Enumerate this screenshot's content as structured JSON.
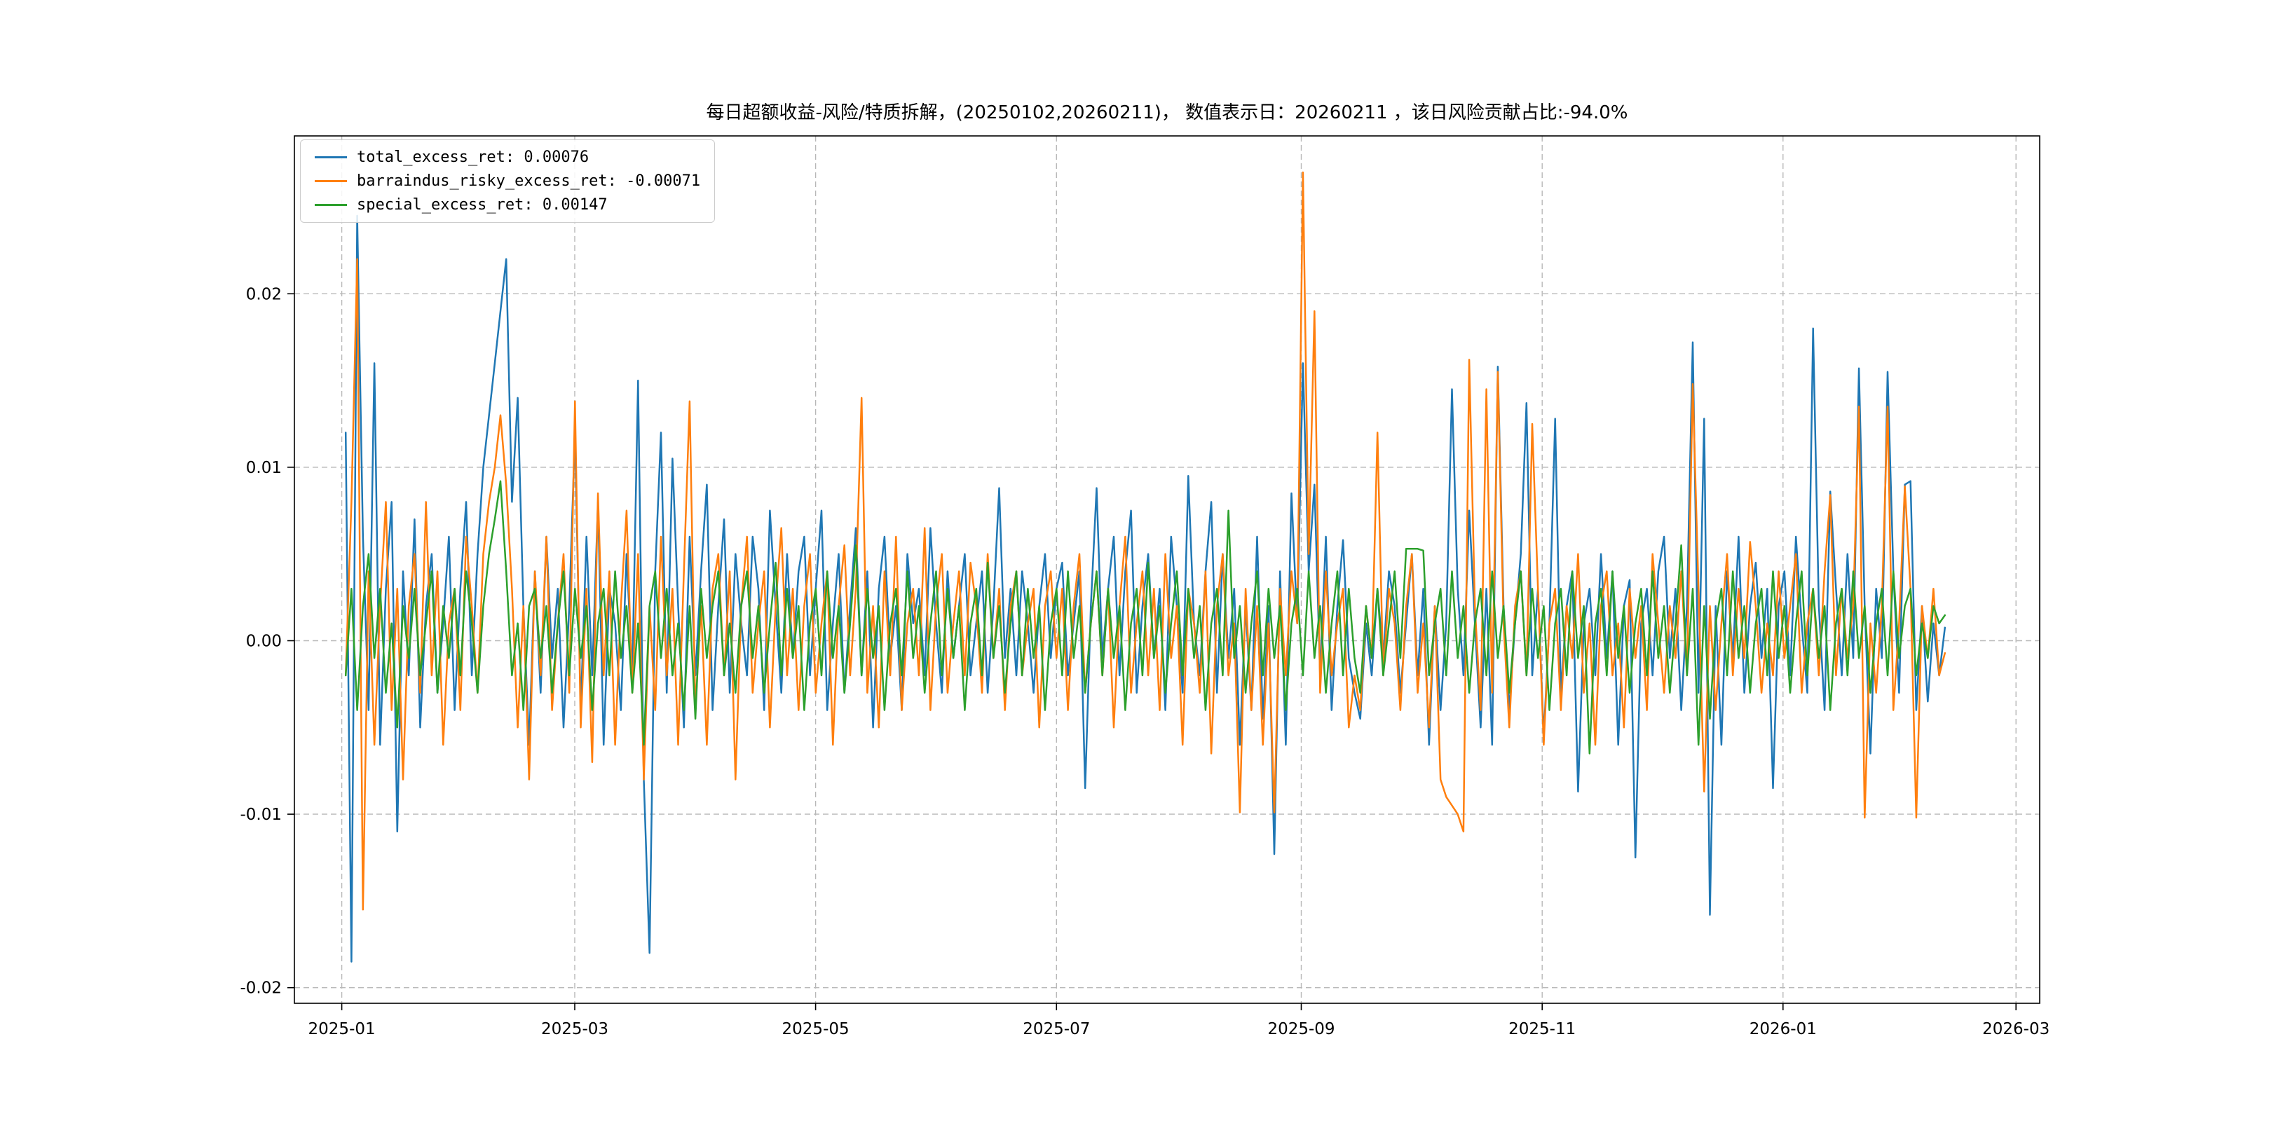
{
  "chart_data": {
    "type": "line",
    "title": "每日超额收益-风险/特质拆解，(20250102,20260211)， 数值表示日：20260211 ，该日风险贡献占比:-94.0%",
    "grid": "dashed",
    "legend_position": "upper-left",
    "start_date": "2025-01-02",
    "end_date": "2026-02-11",
    "x_axis": {
      "tick_labels": [
        "2025-01",
        "2025-03",
        "2025-05",
        "2025-07",
        "2025-09",
        "2025-11",
        "2026-01",
        "2026-03"
      ],
      "tick_days": [
        0,
        59,
        120,
        181,
        243,
        304,
        365,
        424
      ],
      "range_days": [
        -12,
        430
      ]
    },
    "y_axis": {
      "tick_labels": [
        "-0.02",
        "-0.01",
        "0.00",
        "0.01",
        "0.02"
      ],
      "tick_values": [
        -0.02,
        -0.01,
        0,
        0.01,
        0.02
      ],
      "range": [
        -0.0209,
        0.0291
      ]
    },
    "series": [
      {
        "name": "total_excess_ret",
        "legend_label": "total_excess_ret: 0.00076",
        "color": "#1f77b4",
        "last_value": 0.00076,
        "values": [
          0.012,
          -0.0185,
          0.0245,
          0.006,
          -0.004,
          0.016,
          -0.006,
          0.003,
          0.008,
          -0.011,
          0.004,
          -0.002,
          0.007,
          -0.005,
          0.002,
          0.005,
          -0.003,
          0.001,
          0.006,
          -0.004,
          0.003,
          0.008,
          -0.002,
          0.005,
          0.01,
          0.013,
          0.016,
          0.019,
          0.022,
          0.008,
          0.014,
          0.002,
          -0.006,
          0.004,
          -0.003,
          0.006,
          -0.001,
          0.003,
          -0.005,
          0.002,
          0.012,
          -0.004,
          0.006,
          -0.002,
          0.008,
          -0.006,
          0.003,
          0.001,
          -0.004,
          0.005,
          -0.002,
          0.015,
          -0.008,
          -0.018,
          0.004,
          0.012,
          -0.003,
          0.0105,
          0.002,
          -0.005,
          0.006,
          -0.002,
          0.004,
          0.009,
          -0.004,
          0.002,
          0.007,
          -0.003,
          0.005,
          0.001,
          -0.002,
          0.006,
          0.003,
          -0.004,
          0.0075,
          0.002,
          -0.003,
          0.005,
          -0.001,
          0.004,
          0.006,
          -0.002,
          0.003,
          0.0075,
          -0.004,
          0.001,
          0.005,
          -0.003,
          0.002,
          0.0065,
          -0.002,
          0.004,
          -0.005,
          0.003,
          0.006,
          -0.001,
          0.002,
          -0.004,
          0.005,
          0.001,
          0.003,
          -0.002,
          0.0065,
          0.001,
          -0.003,
          0.004,
          -0.001,
          0.002,
          0.005,
          -0.002,
          0.001,
          0.004,
          -0.003,
          0.002,
          0.0088,
          -0.001,
          0.003,
          -0.002,
          0.004,
          0.001,
          -0.003,
          0.002,
          0.005,
          -0.001,
          0.003,
          0.0045,
          -0.002,
          0.001,
          0.004,
          -0.0085,
          0.002,
          0.0088,
          -0.001,
          0.003,
          0.006,
          -0.002,
          0.004,
          0.0075,
          -0.003,
          0.002,
          0.005,
          -0.001,
          0.003,
          -0.004,
          0.006,
          0.002,
          -0.003,
          0.0095,
          0.001,
          -0.002,
          0.004,
          0.008,
          -0.003,
          0.005,
          -0.001,
          0.003,
          -0.006,
          0.002,
          -0.004,
          0.006,
          -0.0045,
          0.002,
          -0.0123,
          0.004,
          -0.006,
          0.0085,
          0.001,
          0.016,
          0.004,
          0.009,
          -0.002,
          0.006,
          -0.004,
          0.002,
          0.0058,
          -0.001,
          -0.003,
          -0.0045,
          0.001,
          -0.002,
          0.003,
          -0.001,
          0.004,
          0.002,
          -0.003,
          0.001,
          0.005,
          -0.002,
          0.003,
          -0.006,
          0.002,
          -0.004,
          0.001,
          0.0145,
          0.003,
          -0.002,
          0.0075,
          0.001,
          -0.005,
          0.003,
          -0.006,
          0.0158,
          0.002,
          -0.004,
          0.001,
          0.005,
          0.0137,
          -0.002,
          0.003,
          -0.0055,
          0.001,
          0.0128,
          -0.003,
          0.002,
          0.004,
          -0.0087,
          0.001,
          0.003,
          -0.002,
          0.005,
          -0.001,
          0.004,
          -0.006,
          0.002,
          0.0035,
          -0.0125,
          0.001,
          0.003,
          -0.002,
          0.004,
          0.006,
          -0.001,
          0.003,
          -0.004,
          0.002,
          0.0172,
          -0.003,
          0.0128,
          -0.0158,
          0.002,
          -0.006,
          0.004,
          -0.001,
          0.006,
          -0.003,
          0.002,
          0.0045,
          -0.001,
          0.003,
          -0.0085,
          0.002,
          0.004,
          -0.002,
          0.006,
          0.001,
          -0.003,
          0.018,
          0.002,
          -0.004,
          0.0086,
          0.003,
          -0.002,
          0.005,
          -0.001,
          0.0157,
          0.002,
          -0.0065,
          0.003,
          -0.001,
          0.0155,
          0.004,
          -0.003,
          0.009,
          0.0092,
          -0.004,
          0.002,
          -0.0035,
          0.001,
          -0.002,
          0.00076
        ]
      },
      {
        "name": "barraindus_risky_excess_ret",
        "legend_label": "barraindus_risky_excess_ret: -0.00071",
        "color": "#ff7f0e",
        "last_value": -0.00071,
        "values": [
          -0.002,
          0.008,
          0.022,
          -0.0155,
          0.004,
          -0.006,
          0.002,
          0.008,
          -0.004,
          0.003,
          -0.008,
          0.002,
          0.005,
          -0.003,
          0.008,
          -0.002,
          0.004,
          -0.006,
          0.001,
          0.003,
          -0.004,
          0.006,
          0.002,
          -0.003,
          0.005,
          0.008,
          0.01,
          0.013,
          0.009,
          0.003,
          -0.005,
          0.002,
          -0.008,
          0.004,
          -0.002,
          0.006,
          -0.004,
          0.001,
          0.005,
          -0.003,
          0.0138,
          -0.005,
          0.003,
          -0.007,
          0.0085,
          -0.002,
          0.004,
          -0.006,
          0.002,
          0.0075,
          -0.003,
          0.005,
          -0.008,
          0.002,
          -0.004,
          0.006,
          -0.002,
          0.003,
          -0.006,
          0.004,
          0.0138,
          -0.004,
          0.002,
          -0.006,
          0.003,
          0.005,
          -0.002,
          0.004,
          -0.008,
          0.002,
          0.006,
          -0.003,
          0.001,
          0.004,
          -0.005,
          0.002,
          0.0065,
          -0.002,
          0.003,
          -0.004,
          0.002,
          0.005,
          -0.003,
          0.001,
          0.004,
          -0.006,
          0.002,
          0.0055,
          -0.002,
          0.003,
          0.014,
          -0.003,
          0.002,
          -0.005,
          0.004,
          -0.002,
          0.006,
          -0.004,
          0.001,
          0.003,
          -0.002,
          0.0065,
          -0.004,
          0.002,
          0.005,
          -0.003,
          0.001,
          0.004,
          -0.002,
          0.0045,
          0.002,
          -0.003,
          0.005,
          -0.001,
          0.003,
          -0.004,
          0.002,
          0.004,
          -0.002,
          0.001,
          0.003,
          -0.005,
          0.002,
          0.004,
          -0.001,
          0.003,
          -0.004,
          0.002,
          0.005,
          -0.003,
          0.001,
          0.004,
          -0.002,
          0.003,
          -0.005,
          0.002,
          0.006,
          -0.003,
          0.001,
          0.004,
          -0.002,
          0.003,
          -0.004,
          0.005,
          -0.001,
          0.002,
          -0.006,
          0.003,
          0.001,
          -0.003,
          0.004,
          -0.0065,
          0.002,
          0.005,
          -0.002,
          0.001,
          -0.0099,
          0.003,
          -0.004,
          0.002,
          -0.006,
          0.001,
          -0.0099,
          0.003,
          -0.002,
          0.004,
          0.001,
          0.027,
          0.005,
          0.019,
          -0.003,
          0.004,
          -0.002,
          0.001,
          0.003,
          -0.005,
          -0.002,
          -0.004,
          0.002,
          -0.001,
          0.012,
          -0.002,
          0.003,
          0.001,
          -0.004,
          0.002,
          0.005,
          -0.003,
          0.001,
          -0.005,
          0.002,
          -0.008,
          -0.009,
          -0.0095,
          -0.01,
          -0.011,
          0.0162,
          0.002,
          -0.004,
          0.0145,
          -0.003,
          0.0155,
          0.001,
          -0.005,
          0.002,
          0.004,
          -0.002,
          0.0125,
          0.003,
          -0.006,
          0.001,
          0.003,
          -0.004,
          0.002,
          -0.001,
          0.005,
          -0.003,
          0.001,
          -0.006,
          0.002,
          0.004,
          -0.002,
          0.001,
          -0.005,
          0.003,
          -0.001,
          0.002,
          -0.004,
          0.005,
          0.001,
          -0.003,
          0.002,
          -0.001,
          0.004,
          -0.002,
          0.0148,
          0.003,
          -0.0087,
          0.002,
          -0.004,
          0.001,
          0.005,
          -0.002,
          0.003,
          -0.001,
          0.0057,
          0.002,
          -0.003,
          0.001,
          -0.002,
          0.004,
          -0.001,
          0.002,
          0.005,
          -0.003,
          0.001,
          0.003,
          -0.002,
          0.004,
          0.0084,
          -0.002,
          0.003,
          -0.001,
          0.002,
          0.0135,
          -0.0102,
          0.001,
          -0.003,
          0.002,
          0.0135,
          -0.004,
          0.001,
          0.0089,
          0.003,
          -0.0102,
          0.002,
          -0.001,
          0.003,
          -0.002,
          -0.00071
        ]
      },
      {
        "name": "special_excess_ret",
        "legend_label": "special_excess_ret: 0.00147",
        "color": "#2ca02c",
        "last_value": 0.00147,
        "values": [
          -0.002,
          0.003,
          -0.004,
          0.002,
          0.005,
          -0.001,
          0.003,
          -0.003,
          0.001,
          -0.005,
          0.002,
          -0.001,
          0.003,
          -0.002,
          0.001,
          0.004,
          -0.003,
          0.002,
          -0.001,
          0.003,
          -0.002,
          0.004,
          0.001,
          -0.003,
          0.002,
          0.005,
          0.007,
          0.0092,
          0.004,
          -0.002,
          0.001,
          -0.004,
          0.002,
          0.003,
          -0.001,
          0.002,
          -0.003,
          0.001,
          0.004,
          -0.002,
          0.003,
          -0.001,
          0.002,
          -0.004,
          0.001,
          0.003,
          -0.002,
          0.004,
          -0.001,
          0.002,
          -0.003,
          0.001,
          -0.006,
          0.002,
          0.004,
          -0.001,
          0.003,
          -0.002,
          0.001,
          -0.004,
          0.002,
          -0.0045,
          0.003,
          -0.001,
          0.002,
          0.004,
          -0.002,
          0.001,
          -0.003,
          0.002,
          0.004,
          -0.001,
          0.002,
          -0.003,
          0.001,
          0.0045,
          -0.002,
          0.003,
          -0.001,
          0.002,
          -0.004,
          0.001,
          0.003,
          -0.002,
          0.004,
          -0.001,
          0.002,
          -0.003,
          0.001,
          0.0055,
          -0.002,
          0.003,
          -0.001,
          0.002,
          -0.004,
          0.001,
          0.003,
          -0.002,
          0.004,
          -0.001,
          0.002,
          -0.003,
          0.001,
          0.004,
          -0.002,
          0.003,
          -0.001,
          0.002,
          -0.004,
          0.001,
          0.003,
          -0.002,
          0.0045,
          -0.001,
          0.002,
          -0.003,
          0.001,
          0.004,
          -0.002,
          0.003,
          -0.001,
          0.002,
          -0.004,
          0.001,
          0.003,
          -0.002,
          0.004,
          -0.001,
          0.002,
          -0.003,
          0.001,
          0.004,
          -0.002,
          0.003,
          -0.001,
          0.002,
          -0.004,
          0.001,
          0.003,
          -0.002,
          0.0045,
          -0.001,
          0.002,
          -0.003,
          0.001,
          0.004,
          -0.002,
          0.003,
          -0.001,
          0.002,
          -0.004,
          0.001,
          0.003,
          -0.002,
          0.0075,
          -0.001,
          0.002,
          -0.003,
          0.001,
          0.004,
          -0.002,
          0.003,
          -0.001,
          0.002,
          -0.004,
          0.001,
          0.003,
          -0.002,
          0.004,
          -0.001,
          0.002,
          -0.003,
          0.001,
          0.004,
          -0.002,
          0.003,
          -0.001,
          -0.003,
          0.002,
          -0.001,
          0.003,
          -0.002,
          0.001,
          0.004,
          -0.001,
          0.0053,
          0.0053,
          0.0053,
          0.0052,
          -0.002,
          0.001,
          0.003,
          -0.002,
          0.004,
          -0.001,
          0.002,
          -0.003,
          0.001,
          0.003,
          -0.002,
          0.004,
          -0.001,
          0.002,
          -0.003,
          0.001,
          0.004,
          -0.002,
          0.003,
          -0.001,
          0.002,
          -0.004,
          0.001,
          0.003,
          -0.002,
          0.004,
          -0.001,
          0.002,
          -0.0065,
          0.001,
          0.003,
          -0.002,
          0.004,
          -0.001,
          0.002,
          -0.003,
          0.001,
          0.003,
          -0.002,
          0.004,
          -0.001,
          0.002,
          -0.003,
          0.001,
          0.0055,
          -0.002,
          0.003,
          -0.006,
          0.002,
          -0.0045,
          0.001,
          0.003,
          -0.002,
          0.004,
          -0.001,
          0.002,
          -0.003,
          0.001,
          0.003,
          -0.002,
          0.004,
          -0.001,
          0.002,
          -0.003,
          0.001,
          0.004,
          -0.002,
          0.003,
          -0.001,
          0.002,
          -0.004,
          0.001,
          0.003,
          -0.002,
          0.004,
          -0.001,
          0.002,
          -0.003,
          0.001,
          0.003,
          -0.002,
          0.004,
          -0.001,
          0.002,
          0.003,
          -0.002,
          0.001,
          -0.001,
          0.002,
          0.001,
          0.00147
        ]
      }
    ]
  }
}
